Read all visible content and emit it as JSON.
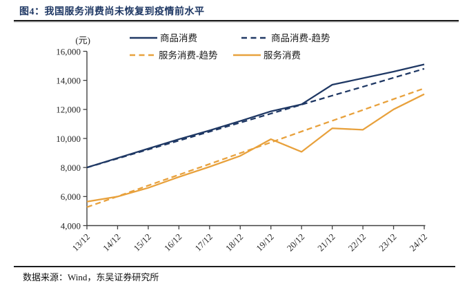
{
  "title": "图4：我国服务消费尚未恢复到疫情前水平",
  "footer": {
    "source_label": "数据来源：Wind，东吴证券研究所"
  },
  "colors": {
    "navy": "#1F3864",
    "orange": "#E8A13C",
    "axis": "#404040",
    "title_text": "#1F3864",
    "rule": "#1c1c1c"
  },
  "chart_data": {
    "type": "line",
    "title": "我国服务消费尚未恢复到疫情前水平",
    "unit_label": "(元)",
    "xlabel": "",
    "ylabel": "元",
    "grid": false,
    "legend_position": "top",
    "ylim": [
      4000,
      16000
    ],
    "yticks": [
      {
        "value": 16000,
        "label": "16,000"
      },
      {
        "value": 14000,
        "label": "14,000"
      },
      {
        "value": 12000,
        "label": "12,000"
      },
      {
        "value": 10000,
        "label": "10,000"
      },
      {
        "value": 8000,
        "label": "8,000"
      },
      {
        "value": 6000,
        "label": "6,000"
      },
      {
        "value": 4000,
        "label": "4,000"
      }
    ],
    "categories": [
      "13/12",
      "14/12",
      "15/12",
      "16/12",
      "17/12",
      "18/12",
      "19/12",
      "20/12",
      "21/12",
      "22/12",
      "23/12",
      "24/12"
    ],
    "series": [
      {
        "id": "goods",
        "name": "商品消费",
        "color": "#1F3864",
        "dash": false,
        "values": [
          8000,
          8650,
          9300,
          9950,
          10550,
          11200,
          11870,
          12350,
          13700,
          14150,
          14600,
          15100
        ]
      },
      {
        "id": "goods_trend",
        "name": "商品消费-趋势",
        "color": "#1F3864",
        "dash": true,
        "values": [
          8000,
          8620,
          9240,
          9850,
          10470,
          11090,
          11710,
          12330,
          12950,
          13560,
          14180,
          14800
        ]
      },
      {
        "id": "services_trend",
        "name": "服务消费-趋势",
        "color": "#E8A13C",
        "dash": true,
        "values": [
          5270,
          6010,
          6760,
          7500,
          8240,
          8990,
          9730,
          10480,
          11220,
          11960,
          12710,
          13450
        ]
      },
      {
        "id": "services",
        "name": "服务消费",
        "color": "#E8A13C",
        "dash": false,
        "values": [
          5650,
          6000,
          6600,
          7350,
          8050,
          8800,
          9950,
          9080,
          10700,
          10600,
          12000,
          13050
        ]
      }
    ],
    "legend_order": [
      "goods",
      "goods_trend",
      "services_trend",
      "services"
    ]
  }
}
